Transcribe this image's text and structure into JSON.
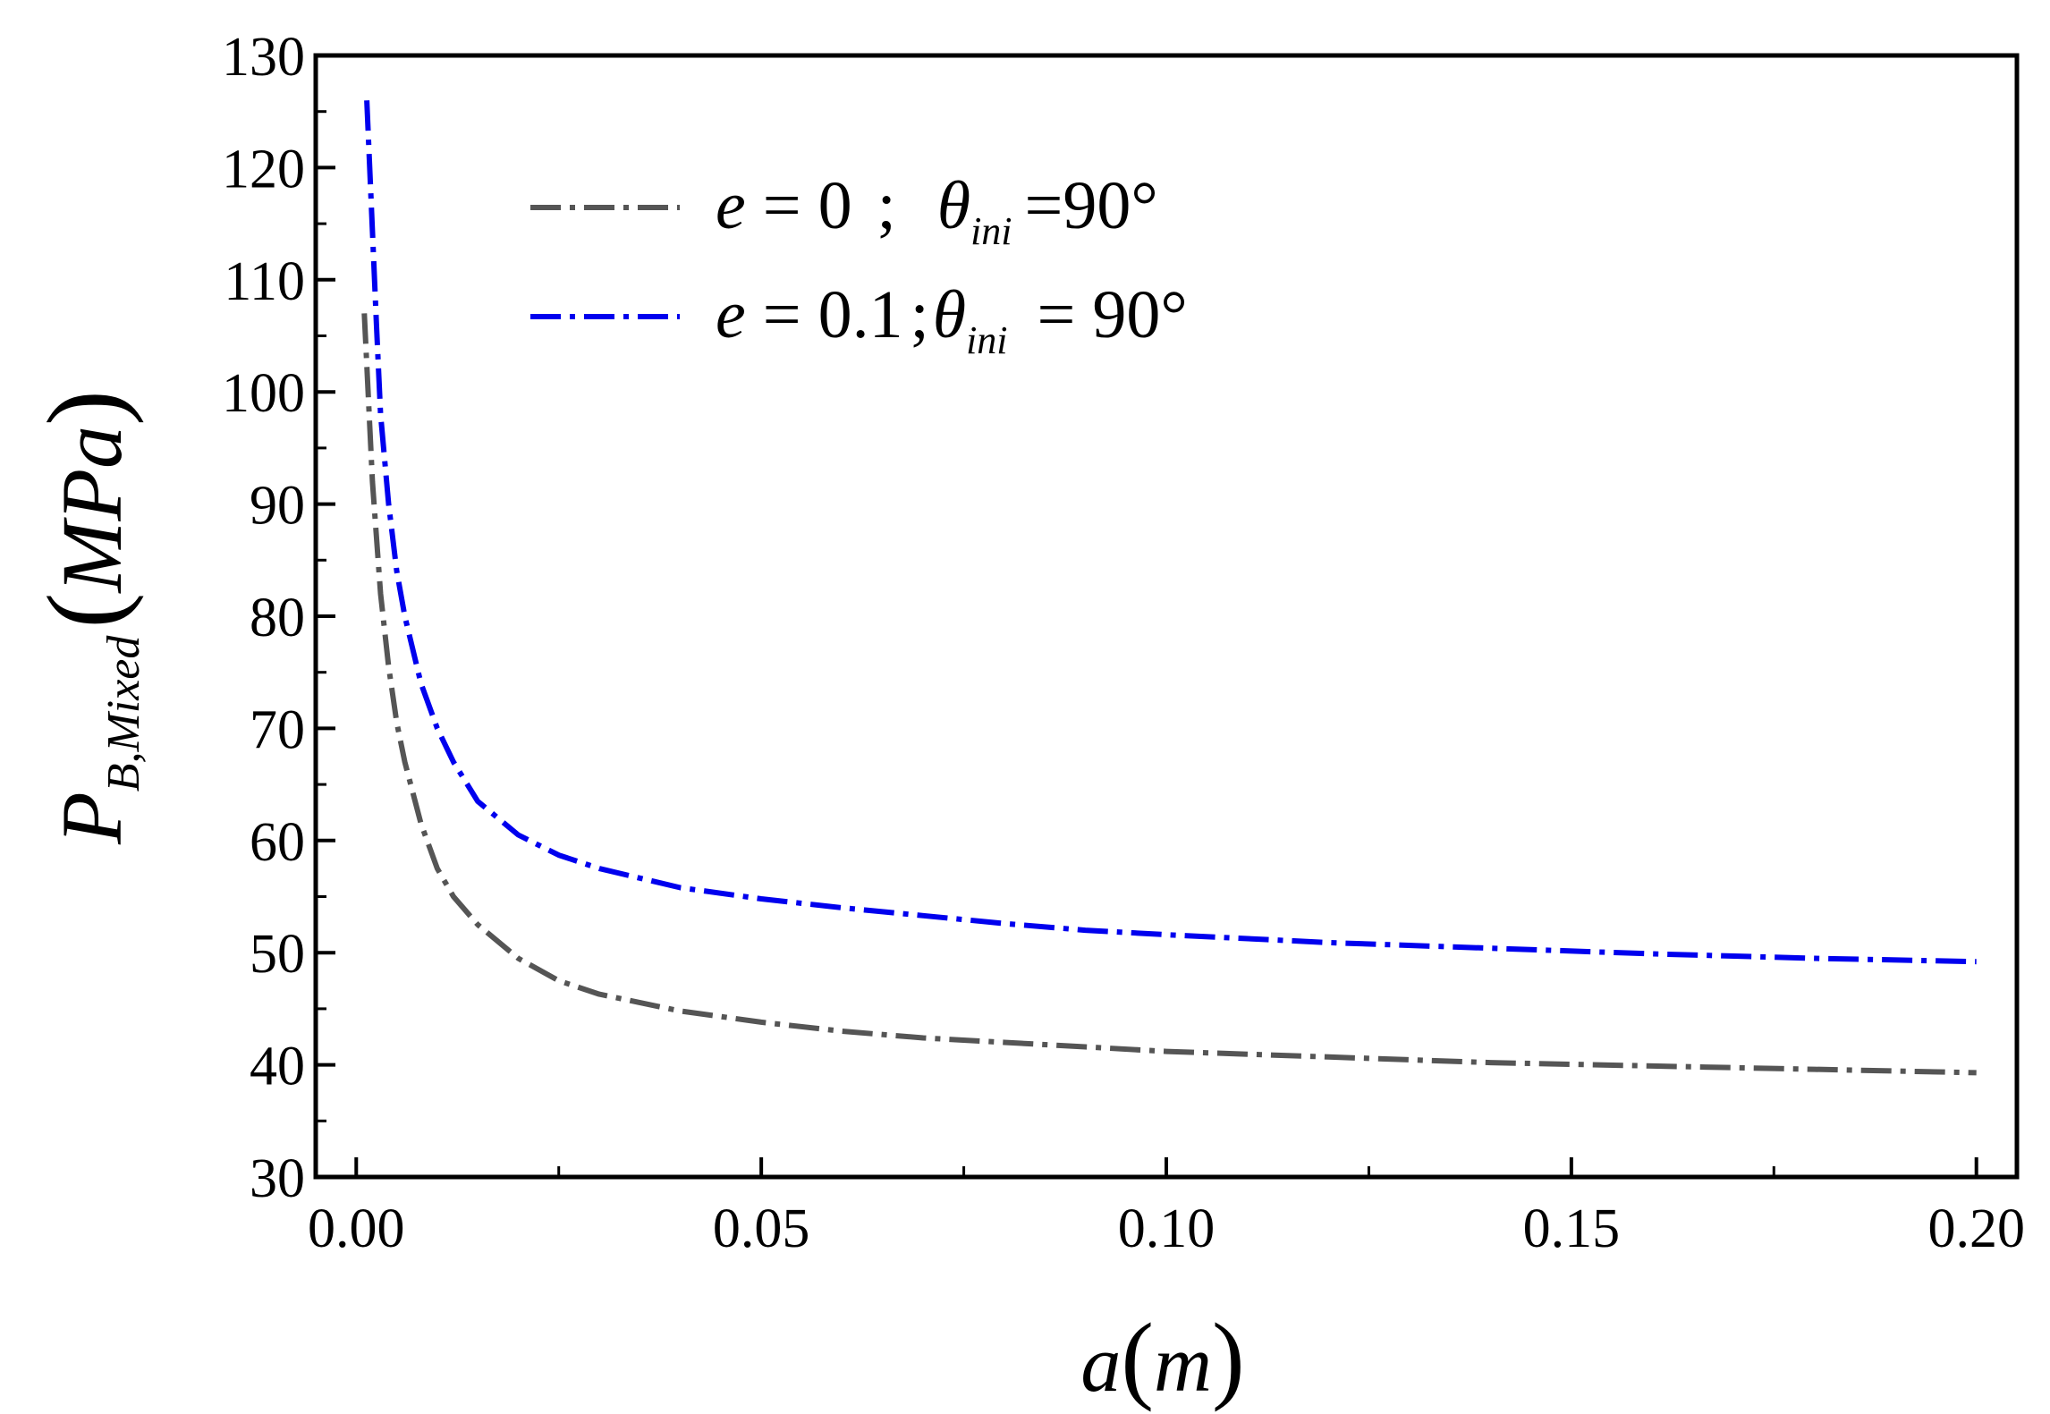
{
  "chart_data": {
    "type": "line",
    "xlim": [
      -0.005,
      0.205
    ],
    "ylim": [
      30,
      130
    ],
    "x_ticks": [
      "0.00",
      "0.05",
      "0.10",
      "0.15",
      "0.20"
    ],
    "y_ticks": [
      "30",
      "40",
      "50",
      "60",
      "70",
      "80",
      "90",
      "100",
      "110",
      "120",
      "130"
    ],
    "xlabel": {
      "italic": "a",
      "unit": "m"
    },
    "ylabel": {
      "symbol": "P",
      "subscript": "B,Mixed",
      "unit": "MPa"
    },
    "grid": false,
    "legend_position": "top-left",
    "series": [
      {
        "legend": {
          "e": "0",
          "sep": ";",
          "theta_sub": "ini",
          "value": "90°"
        },
        "color": "#555555",
        "style": "dash-dot",
        "points": [
          [
            0.001,
            107
          ],
          [
            0.002,
            92
          ],
          [
            0.003,
            82
          ],
          [
            0.004,
            75.5
          ],
          [
            0.005,
            70.5
          ],
          [
            0.006,
            67
          ],
          [
            0.008,
            61.5
          ],
          [
            0.01,
            57.5
          ],
          [
            0.012,
            55
          ],
          [
            0.015,
            52.5
          ],
          [
            0.02,
            49.5
          ],
          [
            0.025,
            47.5
          ],
          [
            0.03,
            46.3
          ],
          [
            0.04,
            44.8
          ],
          [
            0.05,
            43.8
          ],
          [
            0.06,
            43
          ],
          [
            0.07,
            42.4
          ],
          [
            0.08,
            42
          ],
          [
            0.09,
            41.6
          ],
          [
            0.1,
            41.2
          ],
          [
            0.12,
            40.7
          ],
          [
            0.14,
            40.2
          ],
          [
            0.16,
            39.9
          ],
          [
            0.18,
            39.6
          ],
          [
            0.2,
            39.3
          ]
        ]
      },
      {
        "legend": {
          "e": "0.1",
          "sep": ";",
          "theta_sub": "ini",
          "value": "90°"
        },
        "color": "#0000ee",
        "style": "dash-dot",
        "points": [
          [
            0.0013,
            126
          ],
          [
            0.0025,
            106
          ],
          [
            0.003,
            98
          ],
          [
            0.004,
            90
          ],
          [
            0.005,
            84
          ],
          [
            0.006,
            80
          ],
          [
            0.008,
            74
          ],
          [
            0.01,
            70
          ],
          [
            0.012,
            67
          ],
          [
            0.015,
            63.5
          ],
          [
            0.02,
            60.5
          ],
          [
            0.025,
            58.7
          ],
          [
            0.03,
            57.5
          ],
          [
            0.04,
            55.8
          ],
          [
            0.05,
            54.8
          ],
          [
            0.06,
            54
          ],
          [
            0.07,
            53.3
          ],
          [
            0.08,
            52.6
          ],
          [
            0.09,
            52
          ],
          [
            0.1,
            51.6
          ],
          [
            0.12,
            50.9
          ],
          [
            0.14,
            50.4
          ],
          [
            0.16,
            49.9
          ],
          [
            0.18,
            49.5
          ],
          [
            0.2,
            49.2
          ]
        ]
      }
    ]
  }
}
